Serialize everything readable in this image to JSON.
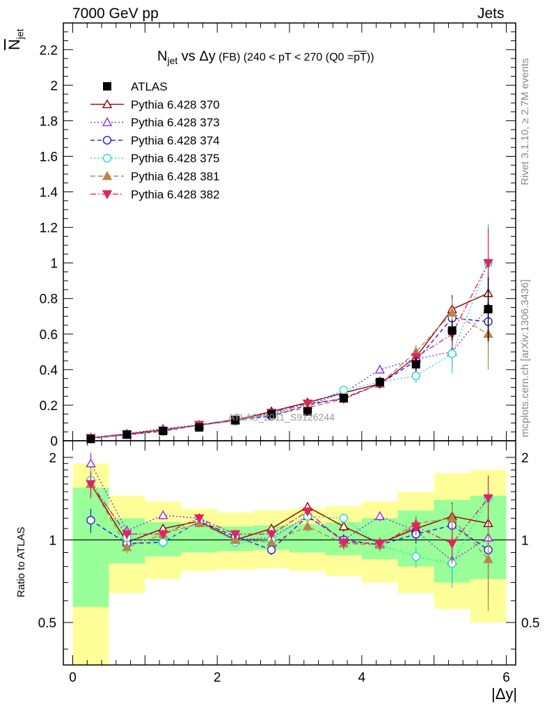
{
  "header": {
    "left": "7000 GeV pp",
    "right": "Jets"
  },
  "title": {
    "main": "N",
    "sub": "jet",
    "rest": " vs Δy",
    "small": " (FB) (240 < pT < 270 (Q0 =",
    "overlined": "pT",
    "end": "))"
  },
  "side_labels": {
    "rivet": "Rivet 3.1.10, ≥ 2.7M events",
    "mcplots": "mcplots.cern.ch [arXiv:1306.3436]"
  },
  "watermark": "ATLAS_2011_S9126244",
  "ylabel_top": "N",
  "ylabel_top_sub": "jet",
  "ylabel_bottom": "Ratio to ATLAS",
  "xlabel": "|Δy|",
  "chart_data": [
    {
      "type": "scatter",
      "name": "main",
      "x": [
        0.25,
        0.75,
        1.25,
        1.75,
        2.25,
        2.75,
        3.25,
        3.75,
        4.25,
        4.75,
        5.25,
        5.75
      ],
      "xlim": [
        -0.13,
        6.13
      ],
      "ylim": [
        0,
        2.35
      ],
      "yticks": [
        0,
        0.2,
        0.4,
        0.6,
        0.8,
        1,
        1.2,
        1.4,
        1.6,
        1.8,
        2,
        2.2
      ],
      "ytick_labels": [
        "0",
        "0.2",
        "0.4",
        "0.6",
        "0.8",
        "1",
        "1.2",
        "1.4",
        "1.6",
        "1.8",
        "2",
        "2.2"
      ],
      "xticks": [
        0,
        2,
        4,
        6
      ],
      "xtick_labels": [
        "0",
        "2",
        "4",
        "6"
      ],
      "data": {
        "name": "ATLAS",
        "values": [
          0.01,
          0.035,
          0.055,
          0.075,
          0.115,
          0.15,
          0.165,
          0.24,
          0.33,
          0.43,
          0.62,
          0.74
        ],
        "err": [
          0.003,
          0.004,
          0.005,
          0.006,
          0.008,
          0.01,
          0.015,
          0.02,
          0.03,
          0.04,
          0.06,
          0.18
        ]
      },
      "series": [
        {
          "name": "Pythia 6.428 370",
          "color": "#8b0000",
          "marker": "triangle-up-open",
          "dash": "",
          "values": [
            0.016,
            0.038,
            0.062,
            0.088,
            0.115,
            0.165,
            0.215,
            0.27,
            0.32,
            0.47,
            0.74,
            0.83
          ],
          "err": [
            0.002,
            0.003,
            0.004,
            0.005,
            0.006,
            0.008,
            0.01,
            0.015,
            0.02,
            0.04,
            0.08,
            0.2
          ]
        },
        {
          "name": "Pythia 6.428 373",
          "color": "#8a2be2",
          "marker": "triangle-up-open",
          "dash": "2,3",
          "values": [
            0.019,
            0.04,
            0.068,
            0.09,
            0.115,
            0.155,
            0.2,
            0.27,
            0.4,
            0.46,
            0.5,
            0.75
          ],
          "err": [
            0.002,
            0.003,
            0.004,
            0.005,
            0.006,
            0.008,
            0.01,
            0.015,
            0.02,
            0.04,
            0.08,
            0.2
          ]
        },
        {
          "name": "Pythia 6.428 374",
          "color": "#1c1ce0",
          "marker": "circle-open",
          "dash": "6,4",
          "values": [
            0.012,
            0.034,
            0.054,
            0.088,
            0.118,
            0.138,
            0.2,
            0.24,
            0.32,
            0.45,
            0.69,
            0.67
          ],
          "err": [
            0.002,
            0.003,
            0.004,
            0.005,
            0.006,
            0.008,
            0.01,
            0.015,
            0.02,
            0.04,
            0.08,
            0.2
          ]
        },
        {
          "name": "Pythia 6.428 375",
          "color": "#27d7c8",
          "marker": "circle-open",
          "dash": "2,3",
          "values": [
            0.016,
            0.036,
            0.054,
            0.086,
            0.11,
            0.15,
            0.2,
            0.285,
            0.33,
            0.365,
            0.49,
            1.0
          ],
          "err": [
            0.002,
            0.003,
            0.004,
            0.005,
            0.006,
            0.008,
            0.01,
            0.015,
            0.02,
            0.04,
            0.11,
            0.22
          ]
        },
        {
          "name": "Pythia 6.428 381",
          "color": "#b8864b",
          "marker": "triangle-up-filled",
          "dash": "7,4",
          "values": [
            0.016,
            0.032,
            0.06,
            0.086,
            0.115,
            0.148,
            0.185,
            0.235,
            0.32,
            0.5,
            0.72,
            0.6
          ],
          "err": [
            0.002,
            0.003,
            0.004,
            0.005,
            0.006,
            0.008,
            0.01,
            0.015,
            0.02,
            0.04,
            0.08,
            0.2
          ]
        },
        {
          "name": "Pythia 6.428 382",
          "color": "#e0245e",
          "marker": "triangle-down-filled",
          "dash": "8,3,2,3",
          "values": [
            0.016,
            0.037,
            0.058,
            0.09,
            0.12,
            0.158,
            0.21,
            0.235,
            0.32,
            0.47,
            0.6,
            1.0
          ],
          "err": [
            0.002,
            0.003,
            0.004,
            0.005,
            0.006,
            0.008,
            0.01,
            0.015,
            0.02,
            0.04,
            0.08,
            0.2
          ]
        }
      ]
    },
    {
      "type": "scatter",
      "name": "ratio",
      "xlim": [
        -0.13,
        6.13
      ],
      "scale": "log",
      "ylim": [
        0.35,
        2.3
      ],
      "yticks": [
        0.5,
        1,
        2
      ],
      "ytick_labels": [
        "0.5",
        "1",
        "2"
      ],
      "bands": {
        "x_edges": [
          0,
          0.5,
          1,
          1.5,
          2,
          2.5,
          3,
          3.5,
          4,
          4.5,
          5,
          5.5,
          6
        ],
        "yellow_low": [
          0.3,
          0.64,
          0.72,
          0.77,
          0.78,
          0.79,
          0.77,
          0.74,
          0.7,
          0.64,
          0.56,
          0.5
        ],
        "yellow_high": [
          1.9,
          1.45,
          1.38,
          1.3,
          1.26,
          1.28,
          1.3,
          1.33,
          1.38,
          1.5,
          1.75,
          1.8
        ],
        "green_low": [
          0.57,
          0.82,
          0.87,
          0.9,
          0.91,
          0.92,
          0.9,
          0.88,
          0.85,
          0.8,
          0.7,
          0.72
        ],
        "green_high": [
          1.55,
          1.2,
          1.16,
          1.13,
          1.12,
          1.13,
          1.14,
          1.16,
          1.2,
          1.28,
          1.4,
          1.45
        ]
      },
      "series": [
        {
          "name": "Pythia 6.428 370",
          "values": [
            1.6,
            0.98,
            1.1,
            1.17,
            1.0,
            1.1,
            1.32,
            1.12,
            0.97,
            1.1,
            1.22,
            1.15
          ],
          "err": [
            0.18,
            0.05,
            0.04,
            0.04,
            0.04,
            0.04,
            0.05,
            0.05,
            0.05,
            0.08,
            0.15,
            0.3
          ]
        },
        {
          "name": "Pythia 6.428 373",
          "values": [
            1.9,
            1.08,
            1.23,
            1.2,
            1.0,
            1.02,
            1.22,
            1.0,
            1.22,
            1.08,
            0.84,
            1.02
          ],
          "err": [
            0.18,
            0.05,
            0.04,
            0.04,
            0.04,
            0.04,
            0.05,
            0.05,
            0.05,
            0.08,
            0.15,
            0.3
          ]
        },
        {
          "name": "Pythia 6.428 374",
          "values": [
            1.18,
            0.97,
            0.98,
            1.17,
            1.03,
            0.92,
            1.22,
            1.0,
            0.96,
            1.05,
            1.13,
            0.92
          ],
          "err": [
            0.12,
            0.05,
            0.04,
            0.04,
            0.04,
            0.04,
            0.05,
            0.05,
            0.05,
            0.08,
            0.15,
            0.3
          ]
        },
        {
          "name": "Pythia 6.428 375",
          "values": [
            1.65,
            1.02,
            0.98,
            1.17,
            0.98,
            1.0,
            1.22,
            1.2,
            0.96,
            0.87,
            0.82,
            1.42
          ],
          "err": [
            0.18,
            0.05,
            0.04,
            0.04,
            0.04,
            0.04,
            0.05,
            0.05,
            0.05,
            0.08,
            0.15,
            0.3
          ]
        },
        {
          "name": "Pythia 6.428 381",
          "values": [
            1.6,
            0.94,
            1.05,
            1.15,
            1.0,
            0.98,
            1.12,
            0.97,
            0.96,
            1.15,
            1.2,
            0.85
          ],
          "err": [
            0.18,
            0.05,
            0.04,
            0.04,
            0.04,
            0.04,
            0.05,
            0.05,
            0.05,
            0.08,
            0.15,
            0.3
          ]
        },
        {
          "name": "Pythia 6.428 382",
          "values": [
            1.6,
            1.05,
            1.05,
            1.2,
            1.05,
            1.05,
            1.27,
            0.98,
            0.97,
            1.12,
            0.97,
            1.42
          ],
          "err": [
            0.18,
            0.05,
            0.04,
            0.04,
            0.04,
            0.04,
            0.05,
            0.05,
            0.05,
            0.08,
            0.15,
            0.3
          ]
        }
      ]
    }
  ]
}
